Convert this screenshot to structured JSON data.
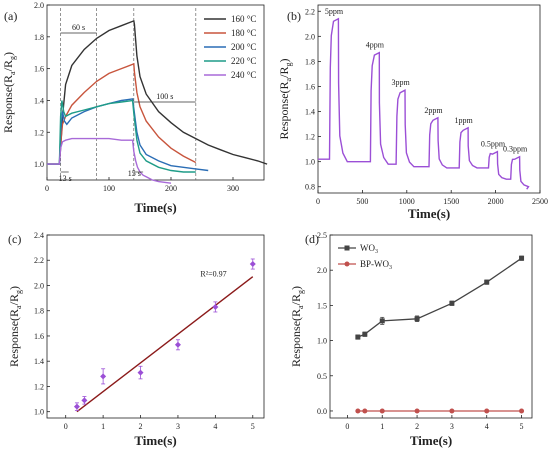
{
  "chart_data": [
    {
      "panel_label": "(a)",
      "type": "line",
      "xlabel": "Time(s)",
      "ylabel": "Response(R",
      "ylabel_sub_a": "a",
      "ylabel_mid": "/R",
      "ylabel_sub_g": "g",
      "ylabel_end": ")",
      "xlim": [
        0,
        350
      ],
      "ylim": [
        0.9,
        2.0
      ],
      "xticks": [
        0,
        100,
        200,
        300
      ],
      "yticks": [
        1.0,
        1.2,
        1.4,
        1.6,
        1.8,
        2.0
      ],
      "ytick_labels": [
        "1.0",
        "1.2",
        "1.4",
        "1.6",
        "1.8",
        "2.0"
      ],
      "legend_position": "top-right",
      "annotations": [
        "60 s",
        "100 s",
        "13 s",
        "15 s"
      ],
      "series": [
        {
          "name": "160 °C",
          "color": "#333333",
          "x": [
            0,
            20,
            22,
            25,
            30,
            40,
            60,
            80,
            100,
            120,
            140,
            141,
            145,
            150,
            160,
            180,
            200,
            220,
            240,
            260,
            280,
            300,
            320,
            340,
            355
          ],
          "y": [
            1.0,
            1.0,
            1.1,
            1.3,
            1.5,
            1.62,
            1.72,
            1.79,
            1.84,
            1.87,
            1.9,
            1.88,
            1.68,
            1.55,
            1.44,
            1.33,
            1.26,
            1.2,
            1.16,
            1.12,
            1.09,
            1.06,
            1.04,
            1.02,
            1.0
          ]
        },
        {
          "name": "180 °C",
          "color": "#c8553d",
          "x": [
            0,
            20,
            22,
            25,
            30,
            40,
            60,
            80,
            100,
            120,
            140,
            141,
            145,
            150,
            160,
            180,
            200,
            220,
            240
          ],
          "y": [
            1.0,
            1.0,
            1.12,
            1.25,
            1.3,
            1.37,
            1.45,
            1.52,
            1.57,
            1.6,
            1.63,
            1.58,
            1.45,
            1.36,
            1.27,
            1.17,
            1.1,
            1.05,
            1.01
          ]
        },
        {
          "name": "200 °C",
          "color": "#2a6db5",
          "x": [
            0,
            20,
            22,
            25,
            28,
            32,
            40,
            60,
            80,
            100,
            120,
            138,
            140,
            145,
            150,
            160,
            180,
            200,
            220,
            240,
            260
          ],
          "y": [
            1.0,
            1.0,
            1.2,
            1.33,
            1.27,
            1.25,
            1.29,
            1.33,
            1.36,
            1.38,
            1.4,
            1.41,
            1.35,
            1.2,
            1.12,
            1.06,
            1.02,
            0.99,
            0.98,
            0.97,
            0.96
          ]
        },
        {
          "name": "220 °C",
          "color": "#1f9c88",
          "x": [
            0,
            20,
            22,
            24,
            27,
            30,
            35,
            40,
            60,
            80,
            100,
            120,
            138,
            140,
            145,
            150,
            160,
            180,
            200,
            220,
            240
          ],
          "y": [
            1.0,
            1.0,
            1.3,
            1.4,
            1.33,
            1.3,
            1.31,
            1.32,
            1.34,
            1.36,
            1.38,
            1.39,
            1.4,
            1.32,
            1.15,
            1.07,
            1.02,
            0.98,
            0.96,
            0.95,
            0.95
          ]
        },
        {
          "name": "240 °C",
          "color": "#a86ad8",
          "x": [
            0,
            20,
            22,
            25,
            30,
            40,
            60,
            80,
            100,
            120,
            138,
            140,
            143,
            146,
            150,
            155,
            160,
            170,
            180,
            200
          ],
          "y": [
            1.0,
            1.0,
            1.1,
            1.14,
            1.15,
            1.16,
            1.16,
            1.16,
            1.16,
            1.15,
            1.15,
            1.08,
            1.02,
            0.98,
            0.95,
            0.93,
            0.92,
            0.9,
            0.89,
            0.88
          ]
        }
      ]
    },
    {
      "panel_label": "(b)",
      "type": "line",
      "xlabel": "Time(s)",
      "ylabel": "Response(R",
      "ylabel_sub_a": "a",
      "ylabel_mid": "/R",
      "ylabel_sub_g": "g",
      "ylabel_end": ")",
      "xlim": [
        0,
        2500
      ],
      "ylim": [
        0.75,
        2.25
      ],
      "xticks": [
        0,
        500,
        1000,
        1500,
        2000,
        2500
      ],
      "yticks": [
        0.8,
        1.0,
        1.2,
        1.4,
        1.6,
        1.8,
        2.0,
        2.2
      ],
      "ytick_labels": [
        "0.8",
        "1.0",
        "1.2",
        "1.4",
        "1.6",
        "1.8",
        "2.0",
        "2.2"
      ],
      "color": "#9b4fd6",
      "pulses": [
        {
          "label": "5ppm",
          "start": 130,
          "peak": 2.14,
          "base": 1.0
        },
        {
          "label": "4ppm",
          "start": 590,
          "peak": 1.87,
          "base": 0.98
        },
        {
          "label": "3ppm",
          "start": 880,
          "peak": 1.57,
          "base": 0.96
        },
        {
          "label": "2ppm",
          "start": 1250,
          "peak": 1.35,
          "base": 0.95
        },
        {
          "label": "1ppm",
          "start": 1590,
          "peak": 1.27,
          "base": 0.95
        },
        {
          "label": "0.5ppm",
          "start": 1920,
          "peak": 1.08,
          "base": 0.86
        },
        {
          "label": "0.3ppm",
          "start": 2170,
          "peak": 1.04,
          "base": 0.8
        }
      ]
    },
    {
      "panel_label": "(c)",
      "type": "scatter",
      "xlabel": "Time(s)",
      "ylabel": "Response(R",
      "ylabel_sub_a": "a",
      "ylabel_mid": "/R",
      "ylabel_sub_g": "g",
      "ylabel_end": ")",
      "xlim": [
        -0.5,
        5.3
      ],
      "ylim": [
        0.95,
        2.4
      ],
      "xticks": [
        0,
        1,
        2,
        3,
        4,
        5
      ],
      "yticks": [
        1.0,
        1.2,
        1.4,
        1.6,
        1.8,
        2.0,
        2.2,
        2.4
      ],
      "ytick_labels": [
        "1.0",
        "1.2",
        "1.4",
        "1.6",
        "1.8",
        "2.0",
        "2.2",
        "2.4"
      ],
      "annotation": "R²=0.97",
      "x": [
        0.3,
        0.5,
        1,
        2,
        3,
        4,
        5
      ],
      "y": [
        1.04,
        1.09,
        1.28,
        1.31,
        1.53,
        1.83,
        2.17
      ],
      "err": [
        0.03,
        0.03,
        0.06,
        0.05,
        0.04,
        0.04,
        0.04
      ],
      "point_color": "#9b4fd6",
      "fit": {
        "x": [
          0.3,
          5
        ],
        "y": [
          1.0,
          2.07
        ],
        "color": "#8b1a1a"
      }
    },
    {
      "panel_label": "(d)",
      "type": "line",
      "xlabel": "Time(s)",
      "ylabel": "Response(R",
      "ylabel_sub_a": "a",
      "ylabel_mid": "/R",
      "ylabel_sub_g": "g",
      "ylabel_end": ")",
      "xlim": [
        -0.5,
        5.3
      ],
      "ylim": [
        -0.1,
        2.5
      ],
      "xticks": [
        0,
        1,
        2,
        3,
        4,
        5
      ],
      "yticks": [
        0.0,
        0.5,
        1.0,
        1.5,
        2.0,
        2.5
      ],
      "ytick_labels": [
        "0.0",
        "0.5",
        "1.0",
        "1.5",
        "2.0",
        "2.5"
      ],
      "legend_position": "top-left",
      "series": [
        {
          "name": "WO",
          "name_sub": "3",
          "color": "#444444",
          "marker": "square",
          "x": [
            0.3,
            0.5,
            1,
            2,
            3,
            4,
            5
          ],
          "y": [
            1.05,
            1.09,
            1.28,
            1.31,
            1.53,
            1.83,
            2.17
          ],
          "err": [
            0.03,
            0.03,
            0.05,
            0.04,
            0.03,
            0.03,
            0.03
          ]
        },
        {
          "name": "BP-WO",
          "name_sub": "3",
          "color": "#c0504d",
          "marker": "circle",
          "x": [
            0.3,
            0.5,
            1,
            2,
            3,
            4,
            5
          ],
          "y": [
            0.0,
            0.0,
            0.0,
            0.0,
            0.0,
            0.0,
            0.0
          ]
        }
      ]
    }
  ]
}
